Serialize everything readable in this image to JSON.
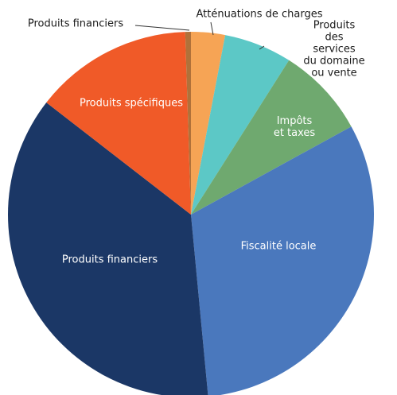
{
  "chart_data": {
    "type": "pie",
    "categories": [
      "Atténuations de charges",
      "Produits des services\ndu domaine\nou vente",
      "Impôts\net taxes",
      "Fiscalité locale",
      "Produits financiers",
      "Produits spécifiques",
      "Produits financiers"
    ],
    "values": [
      3,
      6,
      8,
      31.5,
      37,
      14,
      0.5
    ],
    "colors": [
      "#f6a455",
      "#5cc8c6",
      "#6fa96f",
      "#4a78bd",
      "#1b3766",
      "#f05a28",
      "#b0713a"
    ]
  }
}
